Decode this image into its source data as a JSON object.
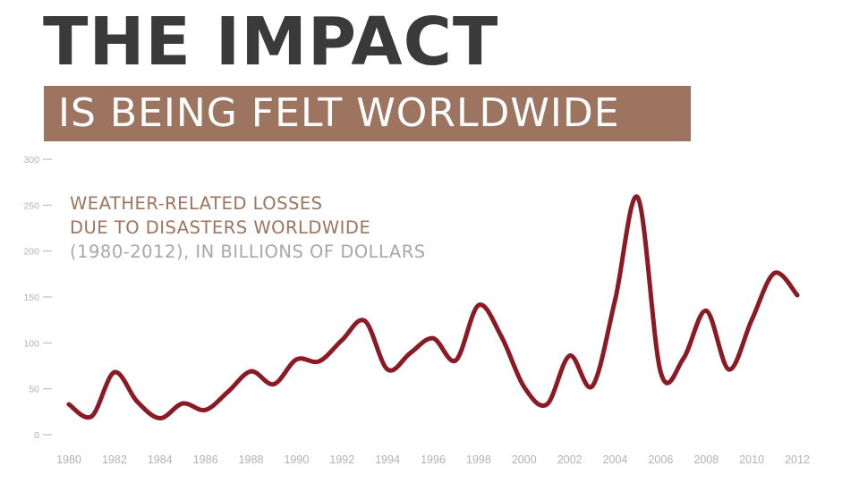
{
  "title": "THE IMPACT",
  "subtitle": "IS BEING FELT WORLDWIDE",
  "caption": {
    "line1": "WEATHER-RELATED LOSSES",
    "line2": "DUE TO DISASTERS WORLDWIDE",
    "line3": "(1980-2012), IN BILLIONS OF DOLLARS"
  },
  "colors": {
    "title": "#3a3a3a",
    "band": "#9c7460",
    "caption_accent": "#9c7460",
    "caption_muted": "#a8a8a8",
    "line": "#8b1a24",
    "ticks": "#b2b2b2"
  },
  "chart_data": {
    "type": "line",
    "title": "WEATHER-RELATED LOSSES DUE TO DISASTERS WORLDWIDE (1980-2012), IN BILLIONS OF DOLLARS",
    "xlabel": "",
    "ylabel": "",
    "xlim": [
      1980,
      2012.5
    ],
    "ylim": [
      0,
      300
    ],
    "grid": false,
    "y_ticks": [
      0,
      50,
      100,
      150,
      200,
      250,
      300
    ],
    "x_ticks": [
      1980,
      1982,
      1984,
      1986,
      1988,
      1990,
      1992,
      1994,
      1996,
      1998,
      2000,
      2002,
      2004,
      2006,
      2008,
      2010,
      2012
    ],
    "series": [
      {
        "x": [
          1980,
          1981,
          1982,
          1983,
          1984,
          1985,
          1986,
          1987,
          1988,
          1989,
          1990,
          1991,
          1992,
          1993,
          1994,
          1995,
          1996,
          1997,
          1998,
          1999,
          2000,
          2001,
          2002,
          2003,
          2004,
          2005,
          2006,
          2007,
          2008,
          2009,
          2010,
          2011,
          2012
        ],
        "values": [
          33,
          20,
          68,
          36,
          18,
          34,
          27,
          47,
          69,
          55,
          82,
          80,
          103,
          124,
          71,
          89,
          105,
          81,
          141,
          107,
          52,
          33,
          86,
          53,
          147,
          258,
          68,
          83,
          135,
          71,
          125,
          176,
          152
        ]
      }
    ]
  }
}
